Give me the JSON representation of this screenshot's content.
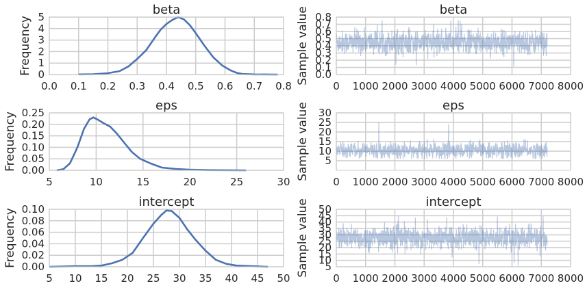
{
  "chart_data": [
    {
      "id": "beta-hist",
      "type": "line",
      "title": "beta",
      "xlabel": "",
      "ylabel": "Frequency",
      "xlim": [
        0.0,
        0.8
      ],
      "ylim": [
        0,
        5
      ],
      "xticks": [
        "0.0",
        "0.1",
        "0.2",
        "0.3",
        "0.4",
        "0.5",
        "0.6",
        "0.7",
        "0.8"
      ],
      "yticks": [
        "0",
        "1",
        "2",
        "3",
        "4",
        "5"
      ],
      "grid": true,
      "color": "#4c72b0",
      "series": [
        {
          "x": [
            0.1,
            0.15,
            0.2,
            0.24,
            0.27,
            0.3,
            0.33,
            0.36,
            0.38,
            0.4,
            0.42,
            0.44,
            0.46,
            0.48,
            0.5,
            0.53,
            0.56,
            0.59,
            0.62,
            0.64,
            0.66,
            0.7,
            0.78
          ],
          "values": [
            0.01,
            0.03,
            0.12,
            0.3,
            0.7,
            1.35,
            2.1,
            3.2,
            3.9,
            4.4,
            4.75,
            5.0,
            4.8,
            4.3,
            3.6,
            2.5,
            1.5,
            0.8,
            0.35,
            0.15,
            0.05,
            0.01,
            0.0
          ]
        }
      ]
    },
    {
      "id": "beta-trace",
      "type": "line",
      "title": "beta",
      "xlabel": "",
      "ylabel": "Sample value",
      "xlim": [
        0,
        8000
      ],
      "ylim": [
        0.0,
        0.8
      ],
      "xticks": [
        "0",
        "1000",
        "2000",
        "3000",
        "4000",
        "5000",
        "6000",
        "7000",
        "8000"
      ],
      "yticks": [
        "0.0",
        "0.1",
        "0.2",
        "0.3",
        "0.4",
        "0.5",
        "0.6",
        "0.7",
        "0.8"
      ],
      "grid": true,
      "color": "#4c72b0",
      "trace": {
        "n": 7200,
        "center": 0.45,
        "sd": 0.08,
        "min": 0.11,
        "max": 0.79
      }
    },
    {
      "id": "eps-hist",
      "type": "line",
      "title": "eps",
      "xlabel": "",
      "ylabel": "Frequency",
      "xlim": [
        5,
        30
      ],
      "ylim": [
        0,
        0.25
      ],
      "xticks": [
        "5",
        "10",
        "15",
        "20",
        "25",
        "30"
      ],
      "yticks": [
        "0.00",
        "0.05",
        "0.10",
        "0.15",
        "0.20",
        "0.25"
      ],
      "grid": true,
      "color": "#4c72b0",
      "series": [
        {
          "x": [
            5.8,
            6.5,
            7.2,
            8.0,
            8.7,
            9.3,
            9.7,
            10.2,
            10.8,
            11.5,
            12.2,
            13.0,
            13.8,
            14.7,
            15.8,
            17.0,
            18.5,
            20.0,
            22.0,
            26.0
          ],
          "values": [
            0.0,
            0.005,
            0.03,
            0.1,
            0.18,
            0.222,
            0.23,
            0.22,
            0.205,
            0.19,
            0.16,
            0.12,
            0.08,
            0.05,
            0.03,
            0.012,
            0.006,
            0.003,
            0.001,
            0.0
          ]
        }
      ]
    },
    {
      "id": "eps-trace",
      "type": "line",
      "title": "eps",
      "xlabel": "",
      "ylabel": "Sample value",
      "xlim": [
        0,
        8000
      ],
      "ylim": [
        0,
        30
      ],
      "xticks": [
        "0",
        "1000",
        "2000",
        "3000",
        "4000",
        "5000",
        "6000",
        "7000",
        "8000"
      ],
      "yticks": [
        "5",
        "10",
        "15",
        "20",
        "25",
        "30"
      ],
      "grid": true,
      "color": "#4c72b0",
      "trace": {
        "n": 7200,
        "center": 10.5,
        "sd": 2.0,
        "min": 6,
        "max": 26
      }
    },
    {
      "id": "intercept-hist",
      "type": "line",
      "title": "intercept",
      "xlabel": "",
      "ylabel": "Frequency",
      "xlim": [
        5,
        50
      ],
      "ylim": [
        0,
        0.1
      ],
      "xticks": [
        "5",
        "10",
        "15",
        "20",
        "25",
        "30",
        "35",
        "40",
        "45",
        "50"
      ],
      "yticks": [
        "0.00",
        "0.02",
        "0.04",
        "0.06",
        "0.08",
        "0.10"
      ],
      "grid": true,
      "color": "#4c72b0",
      "series": [
        {
          "x": [
            5,
            10,
            13,
            15,
            17,
            19,
            21,
            23,
            25,
            26.5,
            27.5,
            28.5,
            30,
            31.5,
            33,
            35,
            37,
            39,
            41,
            44,
            47
          ],
          "values": [
            0.0,
            0.001,
            0.001,
            0.002,
            0.006,
            0.012,
            0.024,
            0.05,
            0.075,
            0.09,
            0.098,
            0.097,
            0.085,
            0.065,
            0.048,
            0.028,
            0.012,
            0.005,
            0.002,
            0.001,
            0.0
          ]
        }
      ]
    },
    {
      "id": "intercept-trace",
      "type": "line",
      "title": "intercept",
      "xlabel": "",
      "ylabel": "Sample value",
      "xlim": [
        0,
        8000
      ],
      "ylim": [
        5,
        50
      ],
      "xticks": [
        "0",
        "1000",
        "2000",
        "3000",
        "4000",
        "5000",
        "6000",
        "7000",
        "8000"
      ],
      "yticks": [
        "5",
        "10",
        "15",
        "20",
        "25",
        "30",
        "35",
        "40",
        "45",
        "50"
      ],
      "grid": true,
      "color": "#4c72b0",
      "trace": {
        "n": 7200,
        "center": 27.5,
        "sd": 4.5,
        "min": 6,
        "max": 46
      }
    }
  ]
}
